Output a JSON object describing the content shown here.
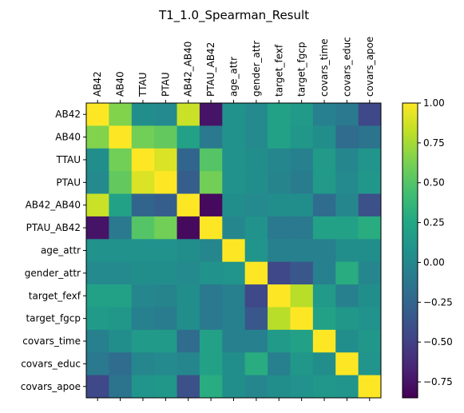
{
  "chart_data": {
    "type": "heatmap",
    "title": "T1_1.0_Spearman_Result",
    "xlabel": "",
    "ylabel": "",
    "x_labels_position": "top",
    "categories": [
      "AB42",
      "AB40",
      "TTAU",
      "PTAU",
      "AB42_AB40",
      "PTAU_AB42",
      "age_attr",
      "gender_attr",
      "target_fexf",
      "target_fgcp",
      "covars_time",
      "covars_educ",
      "covars_apoe"
    ],
    "matrix": [
      [
        1.0,
        0.65,
        0.05,
        0.02,
        0.85,
        -0.75,
        0.08,
        0.02,
        0.2,
        0.15,
        -0.05,
        -0.1,
        -0.45
      ],
      [
        0.65,
        1.0,
        0.6,
        0.55,
        0.2,
        -0.1,
        0.08,
        0.02,
        0.2,
        0.12,
        0.05,
        -0.2,
        -0.15
      ],
      [
        0.05,
        0.6,
        1.0,
        0.9,
        -0.25,
        0.5,
        0.08,
        0.05,
        0.0,
        -0.05,
        0.15,
        0.0,
        0.1
      ],
      [
        0.02,
        0.55,
        0.9,
        1.0,
        -0.3,
        0.6,
        0.08,
        0.05,
        -0.02,
        -0.08,
        0.15,
        0.02,
        0.12
      ],
      [
        0.85,
        0.2,
        -0.25,
        -0.3,
        1.0,
        -0.8,
        0.05,
        0.02,
        0.05,
        0.05,
        -0.2,
        0.0,
        -0.4
      ],
      [
        -0.75,
        -0.1,
        0.5,
        0.6,
        -0.8,
        1.0,
        0.0,
        0.08,
        -0.1,
        -0.1,
        0.2,
        0.2,
        0.3
      ],
      [
        0.08,
        0.08,
        0.08,
        0.08,
        0.05,
        0.0,
        1.0,
        0.1,
        -0.05,
        -0.05,
        -0.05,
        0.05,
        0.05
      ],
      [
        0.02,
        0.02,
        0.05,
        0.05,
        0.02,
        0.08,
        0.1,
        1.0,
        -0.45,
        -0.35,
        -0.05,
        0.3,
        0.0
      ],
      [
        0.2,
        0.2,
        0.0,
        -0.02,
        0.05,
        -0.1,
        -0.05,
        -0.45,
        1.0,
        0.8,
        0.15,
        -0.05,
        0.05
      ],
      [
        0.15,
        0.12,
        -0.05,
        -0.08,
        0.05,
        -0.1,
        -0.05,
        -0.35,
        0.8,
        1.0,
        0.2,
        0.12,
        0.08
      ],
      [
        -0.05,
        0.05,
        0.15,
        0.15,
        -0.2,
        0.2,
        -0.05,
        -0.05,
        0.15,
        0.2,
        1.0,
        0.05,
        0.12
      ],
      [
        -0.1,
        -0.2,
        0.0,
        0.02,
        0.0,
        0.2,
        0.05,
        0.3,
        -0.05,
        0.12,
        0.05,
        1.0,
        0.1
      ],
      [
        -0.45,
        -0.15,
        0.1,
        0.12,
        -0.4,
        0.3,
        0.05,
        0.0,
        0.05,
        0.08,
        0.12,
        0.1,
        1.0
      ]
    ],
    "colorbar": {
      "colormap": "viridis",
      "range": [
        -0.85,
        1.0
      ],
      "ticks": [
        -0.75,
        -0.5,
        -0.25,
        0.0,
        0.25,
        0.5,
        0.75,
        1.0
      ],
      "tick_labels": [
        "−0.75",
        "−0.50",
        "−0.25",
        "0.00",
        "0.25",
        "0.50",
        "0.75",
        "1.00"
      ]
    },
    "grid": false
  }
}
